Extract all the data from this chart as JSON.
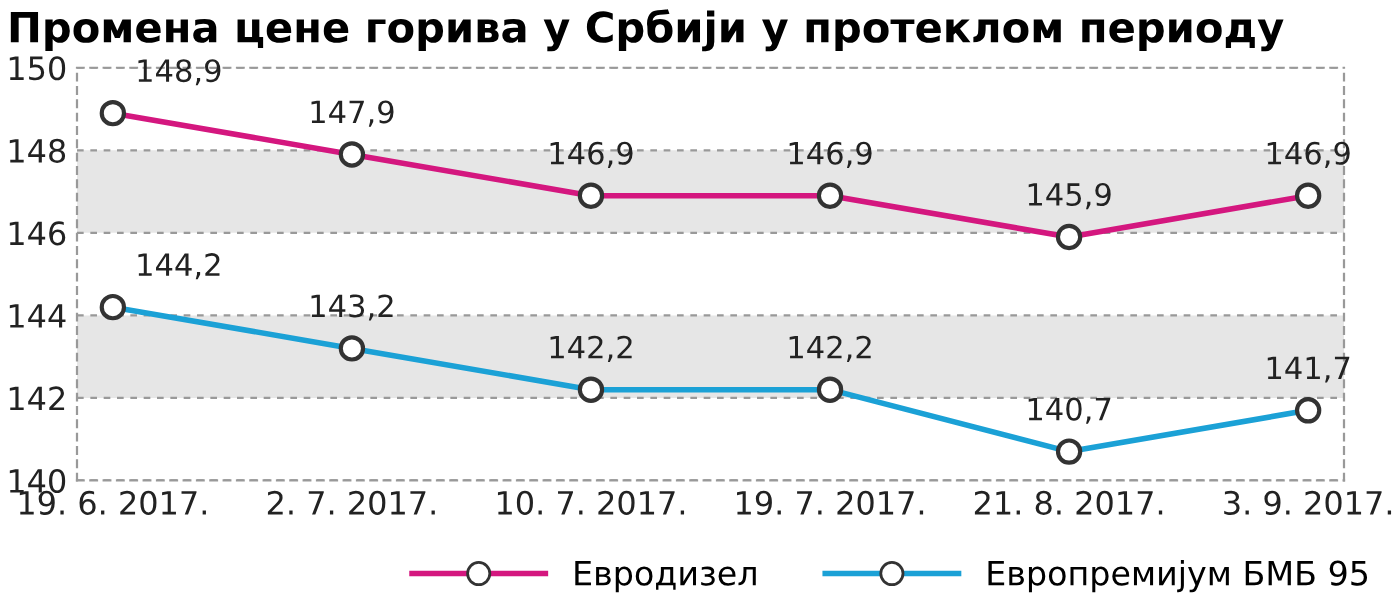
{
  "chart_data": {
    "type": "line",
    "title": "Промена цене горива у Србији у протеклом периоду",
    "categories": [
      "19. 6. 2017.",
      "2. 7. 2017.",
      "10. 7. 2017.",
      "19. 7. 2017.",
      "21. 8. 2017.",
      "3. 9. 2017."
    ],
    "series": [
      {
        "name": "Евродизел",
        "color": "#d4177f",
        "values": [
          148.9,
          147.9,
          146.9,
          146.9,
          145.9,
          146.9
        ],
        "value_labels": [
          "148,9",
          "147,9",
          "146,9",
          "146,9",
          "145,9",
          "146,9"
        ]
      },
      {
        "name": "Европремијум БМБ 95",
        "color": "#1ba1d6",
        "values": [
          144.2,
          143.2,
          142.2,
          142.2,
          140.7,
          141.7
        ],
        "value_labels": [
          "144,2",
          "143,2",
          "142,2",
          "142,2",
          "140,7",
          "141,7"
        ]
      }
    ],
    "ylim": [
      140,
      150
    ],
    "yticks": [
      140,
      142,
      144,
      146,
      148,
      150
    ],
    "bands": [
      {
        "axis": "y",
        "from": 142,
        "to": 144,
        "color": "#e6e6e6"
      },
      {
        "axis": "y",
        "from": 146,
        "to": 148,
        "color": "#e6e6e6"
      }
    ],
    "grid": "y",
    "marker": "circle",
    "line_style": "solid",
    "legend": "bottom"
  }
}
